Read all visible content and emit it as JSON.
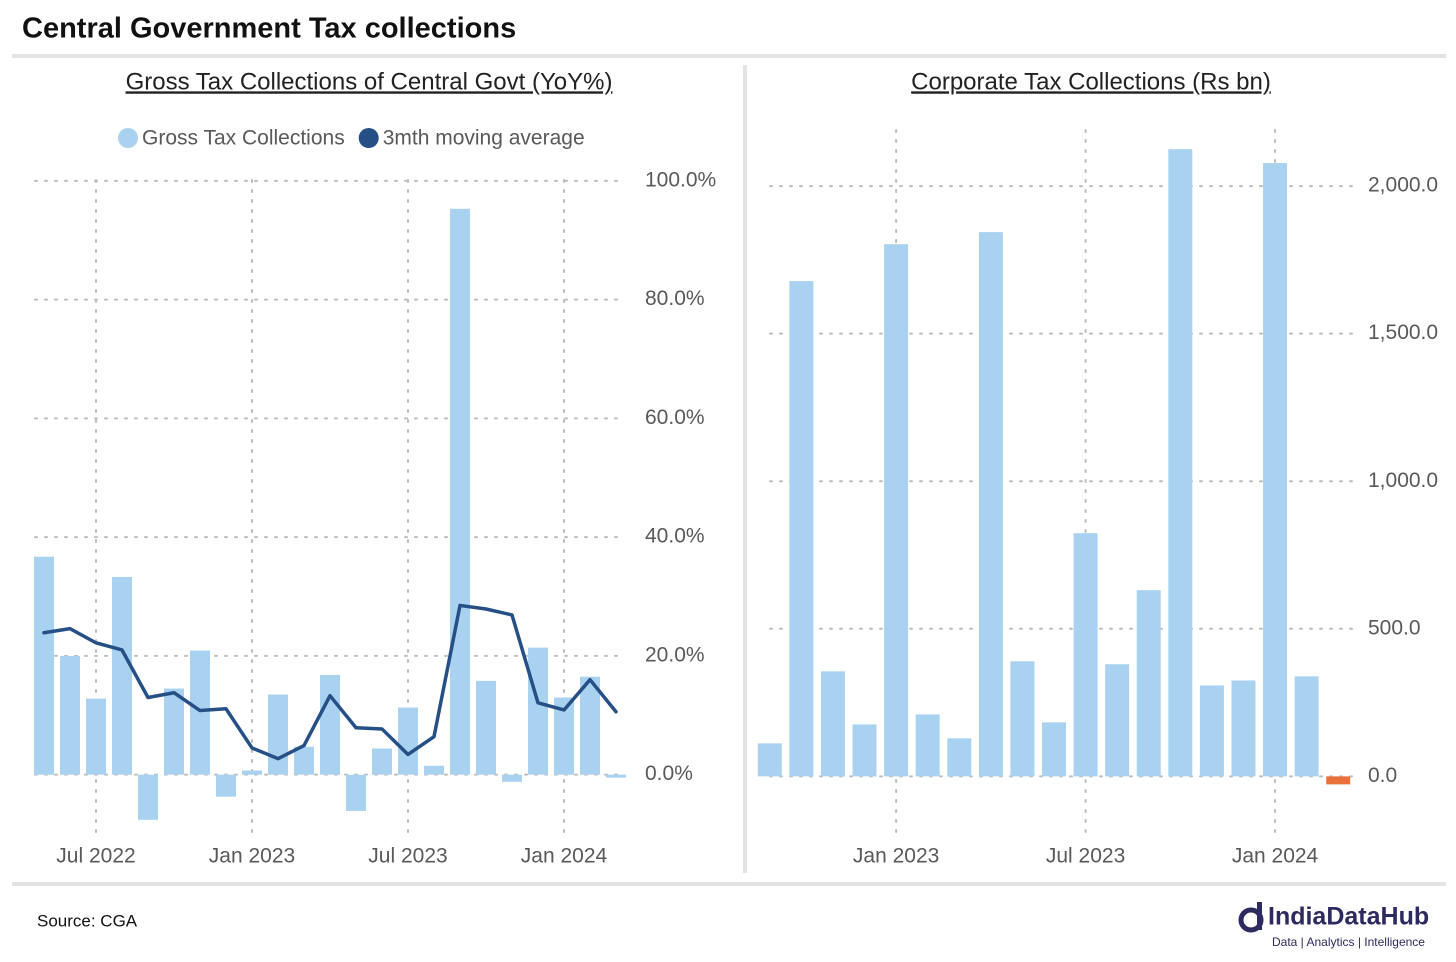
{
  "title": "Central Government Tax collections",
  "source": "Source: CGA",
  "logo": {
    "name": "IndiaDataHub",
    "tagline": "Data | Analytics | Intelligence"
  },
  "chart_data": [
    {
      "type": "bar",
      "title": "Gross Tax Collections of Central Govt (YoY%)",
      "categories": [
        null,
        null,
        "Jul 2022",
        null,
        null,
        null,
        null,
        null,
        "Jan 2023",
        null,
        null,
        null,
        null,
        null,
        "Jul 2023",
        null,
        null,
        null,
        null,
        null,
        "Jan 2024",
        null,
        null
      ],
      "series": [
        {
          "name": "Gross Tax Collections",
          "type": "bar",
          "color": "#a9d2f1",
          "values": [
            36.7,
            20.0,
            12.8,
            33.3,
            -7.6,
            14.5,
            20.9,
            -3.7,
            0.7,
            13.5,
            4.7,
            16.8,
            -6.1,
            4.4,
            11.3,
            1.5,
            95.3,
            15.8,
            -1.2,
            21.4,
            13.0,
            16.5,
            -0.5
          ]
        },
        {
          "name": "3mth moving average",
          "type": "line",
          "color": "#264f86",
          "values": [
            23.9,
            24.6,
            22.2,
            21.0,
            13.0,
            13.8,
            10.8,
            11.1,
            4.5,
            2.7,
            4.9,
            13.3,
            7.9,
            7.7,
            3.4,
            6.4,
            28.5,
            27.9,
            26.9,
            12.1,
            10.9,
            16.0,
            10.6
          ]
        }
      ],
      "ylim": [
        -11,
        102
      ],
      "yticks": [
        {
          "value": 0,
          "label": "0.0%"
        },
        {
          "value": 20,
          "label": "20.0%"
        },
        {
          "value": 40,
          "label": "40.0%"
        },
        {
          "value": 60,
          "label": "60.0%"
        },
        {
          "value": 80,
          "label": "80.0%"
        },
        {
          "value": 100,
          "label": "100.0%"
        }
      ],
      "grid": true,
      "legend": "top"
    },
    {
      "type": "bar",
      "title": "Corporate Tax Collections (Rs bn)",
      "categories": [
        null,
        null,
        null,
        null,
        "Jan 2023",
        null,
        null,
        null,
        null,
        null,
        "Jul 2023",
        null,
        null,
        null,
        null,
        null,
        "Jan 2024",
        null,
        null
      ],
      "values": [
        112,
        1678,
        356,
        176,
        1803,
        210,
        129,
        1844,
        390,
        183,
        824,
        380,
        631,
        2125,
        308,
        325,
        2078,
        339,
        -27
      ],
      "colors": [
        "#a9d2f1",
        "#a9d2f1",
        "#a9d2f1",
        "#a9d2f1",
        "#a9d2f1",
        "#a9d2f1",
        "#a9d2f1",
        "#a9d2f1",
        "#a9d2f1",
        "#a9d2f1",
        "#a9d2f1",
        "#a9d2f1",
        "#a9d2f1",
        "#a9d2f1",
        "#a9d2f1",
        "#a9d2f1",
        "#a9d2f1",
        "#a9d2f1",
        "#e8703a"
      ],
      "ylim": [
        -80,
        2190
      ],
      "yticks": [
        {
          "value": 0,
          "label": "0.0"
        },
        {
          "value": 500,
          "label": "500.0"
        },
        {
          "value": 1000,
          "label": "1,000.0"
        },
        {
          "value": 1500,
          "label": "1,500.0"
        },
        {
          "value": 2000,
          "label": "2,000.0"
        }
      ],
      "grid": true
    }
  ]
}
